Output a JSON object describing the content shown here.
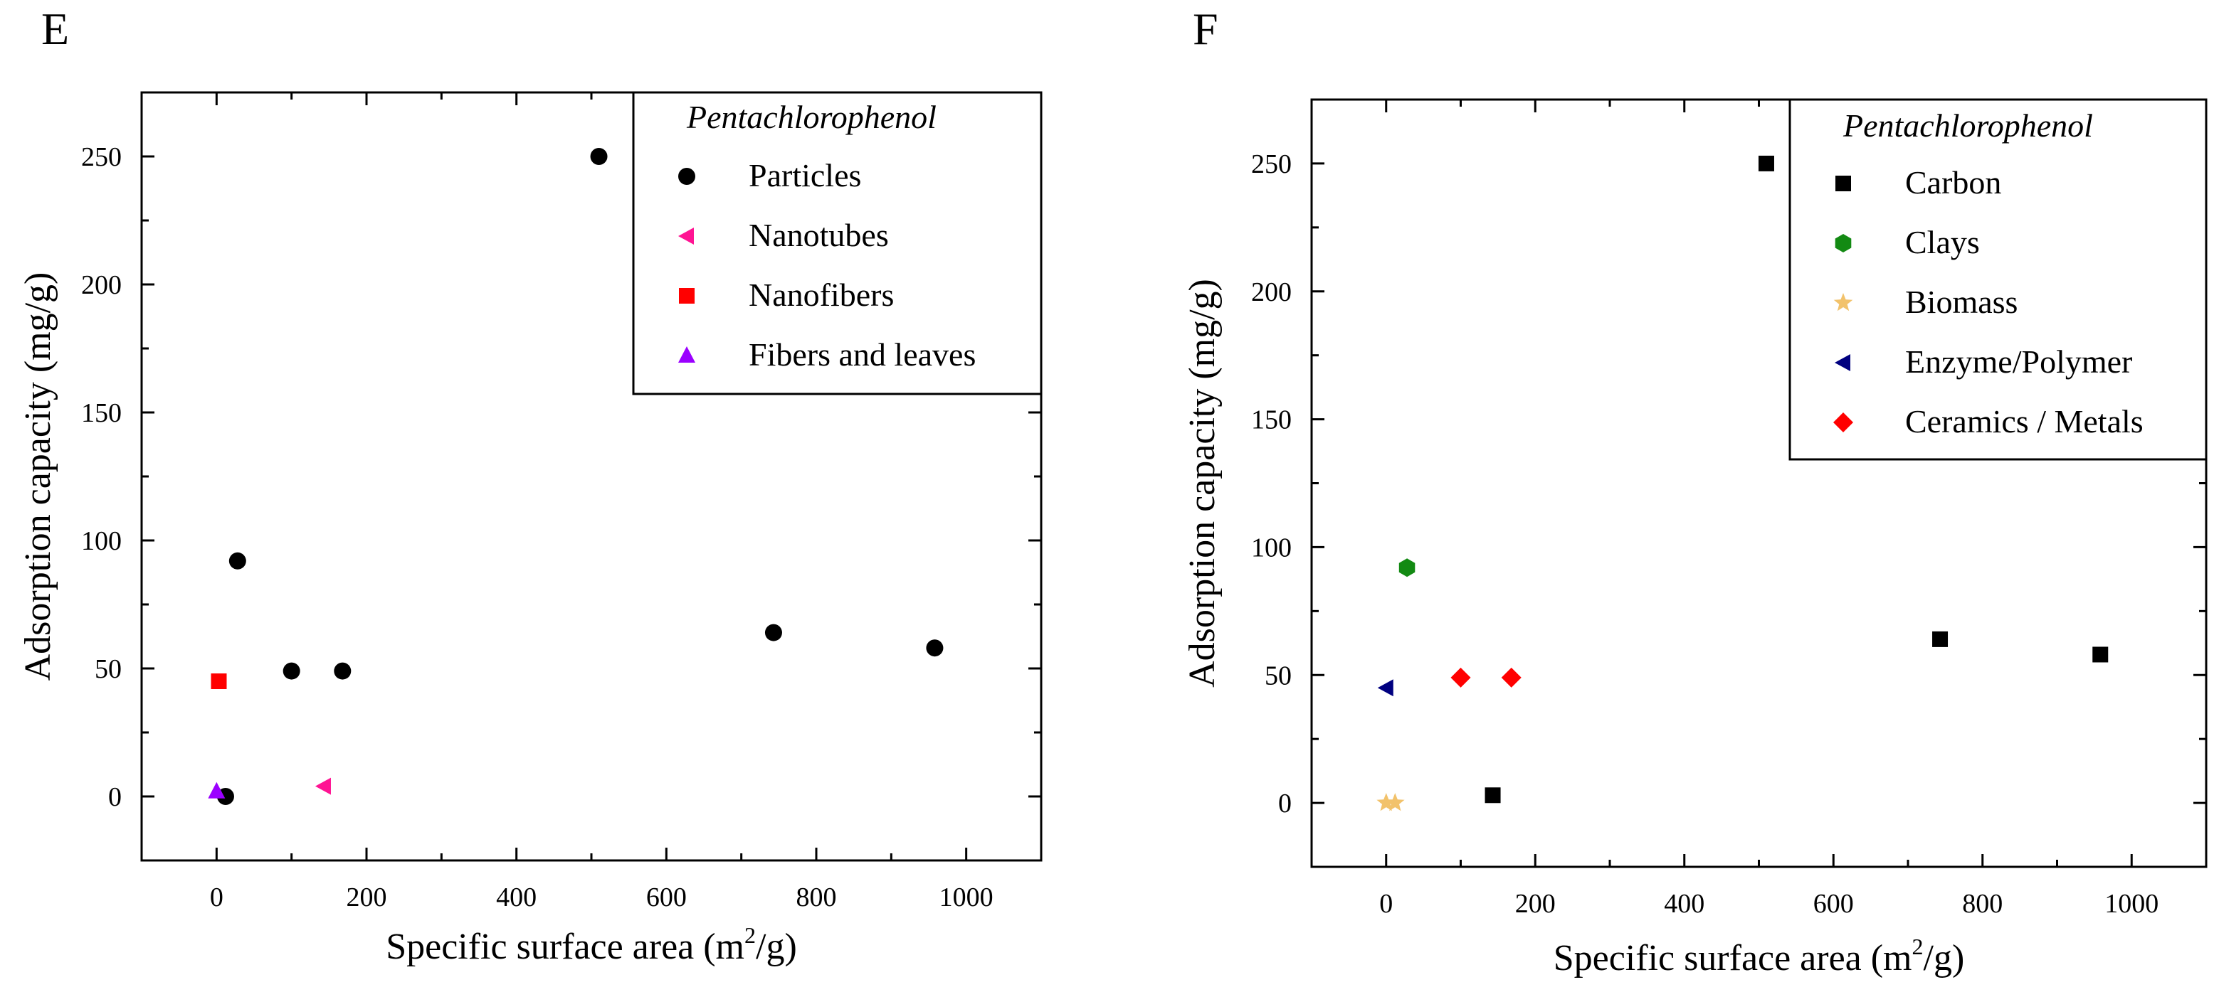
{
  "chart_data": [
    {
      "panel_label": "E",
      "type": "scatter",
      "xlabel_main": "Specific surface area (m",
      "xlabel_sup": "2",
      "xlabel_end": "/g)",
      "ylabel": "Adsorption capacity (mg/g)",
      "xlim": [
        -100,
        1100
      ],
      "ylim": [
        -25,
        275
      ],
      "xticks": [
        0,
        200,
        400,
        600,
        800,
        1000
      ],
      "xtick_labels": [
        "0",
        "200",
        "400",
        "600",
        "800",
        "1000"
      ],
      "yticks": [
        0,
        50,
        100,
        150,
        200,
        250
      ],
      "ytick_labels": [
        "0",
        "50",
        "100",
        "150",
        "200",
        "250"
      ],
      "legend_title": "Pentachlorophenol",
      "legend_position": "top-right",
      "series": [
        {
          "name": "Particles",
          "marker": "circle",
          "color": "#000000",
          "points": [
            [
              510,
              250
            ],
            [
              28,
              92
            ],
            [
              100,
              49
            ],
            [
              168,
              49
            ],
            [
              743,
              64
            ],
            [
              958,
              58
            ],
            [
              12,
              0
            ]
          ]
        },
        {
          "name": "Nanotubes",
          "marker": "triangle-left",
          "color": "#ff1493",
          "points": [
            [
              143,
              4
            ]
          ]
        },
        {
          "name": "Nanofibers",
          "marker": "square",
          "color": "#ff0000",
          "points": [
            [
              3,
              45
            ]
          ]
        },
        {
          "name": "Fibers and leaves",
          "marker": "triangle-up",
          "color": "#9b00ff",
          "points": [
            [
              0,
              2
            ]
          ]
        }
      ]
    },
    {
      "panel_label": "F",
      "type": "scatter",
      "xlabel_main": "Specific surface area (m",
      "xlabel_sup": "2",
      "xlabel_end": "/g)",
      "ylabel": "Adsorption capacity (mg/g)",
      "xlim": [
        -100,
        1100
      ],
      "ylim": [
        -25,
        275
      ],
      "xticks": [
        0,
        200,
        400,
        600,
        800,
        1000
      ],
      "xtick_labels": [
        "0",
        "200",
        "400",
        "600",
        "800",
        "1000"
      ],
      "yticks": [
        0,
        50,
        100,
        150,
        200,
        250
      ],
      "ytick_labels": [
        "0",
        "50",
        "100",
        "150",
        "200",
        "250"
      ],
      "legend_title": "Pentachlorophenol",
      "legend_position": "top-right",
      "series": [
        {
          "name": "Carbon",
          "marker": "square",
          "color": "#000000",
          "points": [
            [
              510,
              250
            ],
            [
              743,
              64
            ],
            [
              958,
              58
            ],
            [
              143,
              3
            ]
          ]
        },
        {
          "name": "Clays",
          "marker": "hexagon",
          "color": "#138a13",
          "points": [
            [
              28,
              92
            ]
          ]
        },
        {
          "name": "Biomass",
          "marker": "star",
          "color": "#f2c26b",
          "points": [
            [
              0,
              0
            ],
            [
              12,
              0
            ]
          ]
        },
        {
          "name": "Enzyme/Polymer",
          "marker": "triangle-left",
          "color": "#000080",
          "points": [
            [
              0,
              45
            ]
          ]
        },
        {
          "name": "Ceramics / Metals",
          "marker": "diamond",
          "color": "#ff0000",
          "points": [
            [
              100,
              49
            ],
            [
              168,
              49
            ]
          ]
        }
      ]
    }
  ]
}
